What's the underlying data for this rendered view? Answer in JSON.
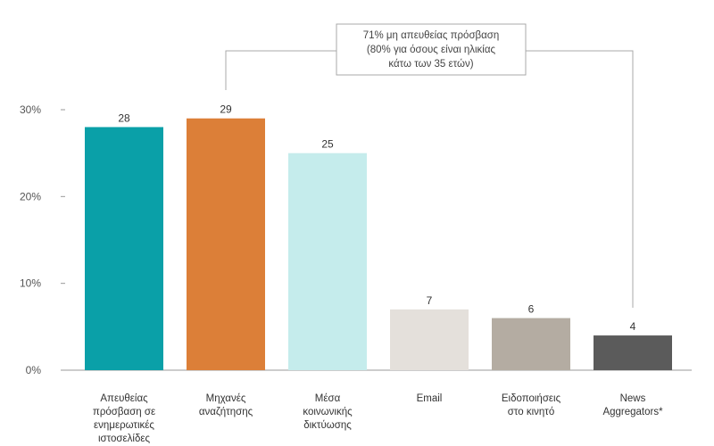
{
  "chart_data": {
    "type": "bar",
    "categories": [
      [
        "Απευθείας",
        "πρόσβαση σε",
        "ενημερωτικές",
        "ιστοσελίδες"
      ],
      [
        "Μηχανές",
        "αναζήτησης"
      ],
      [
        "Μέσα",
        "κοινωνικής",
        "δικτύωσης"
      ],
      [
        "Email"
      ],
      [
        "Ειδοποιήσεις",
        "στο κινητό"
      ],
      [
        "News",
        "Aggregators*"
      ]
    ],
    "values": [
      28,
      29,
      25,
      7,
      6,
      4
    ],
    "value_labels": [
      "28",
      "29",
      "25",
      "7",
      "6",
      "4"
    ],
    "colors": [
      "#0aa0a8",
      "#dc7f38",
      "#c5ecec",
      "#e4e0db",
      "#b4aca2",
      "#5b5b5b"
    ],
    "ylim": [
      0,
      30
    ],
    "yticks": [
      0,
      10,
      20,
      30
    ],
    "ytick_labels": [
      "0%",
      "10%",
      "20%",
      "30%"
    ],
    "grid": false,
    "annotation": {
      "lines": [
        "71% μη απευθείας πρόσβαση",
        "(80% για όσους είναι ηλικίας",
        "κάτω των 35 ετών)"
      ],
      "bracket_from_category": 1,
      "bracket_to_category": 5
    }
  }
}
